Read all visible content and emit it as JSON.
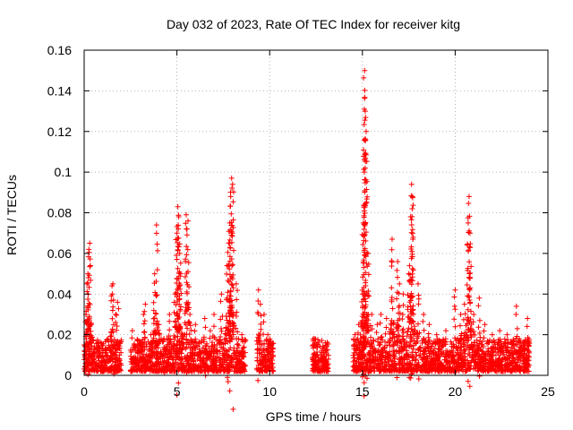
{
  "chart_data": {
    "type": "scatter",
    "title": "Day 032 of 2023, Rate Of TEC Index for receiver kitg",
    "xlabel": "GPS time / hours",
    "ylabel": "ROTI / TECUs",
    "xlim": [
      0,
      25
    ],
    "ylim": [
      0,
      0.16
    ],
    "xticks": [
      0,
      5,
      10,
      15,
      20,
      25
    ],
    "xtick_labels": [
      "0",
      "5",
      "10",
      "15",
      "20",
      "25"
    ],
    "yticks": [
      0,
      0.02,
      0.04,
      0.06,
      0.08,
      0.1,
      0.12,
      0.14,
      0.16
    ],
    "ytick_labels": [
      "0",
      "0.02",
      "0.04",
      "0.06",
      "0.08",
      "0.1",
      "0.12",
      "0.14",
      "0.16"
    ],
    "grid": true,
    "marker": "+",
    "color": "#ff0000",
    "data_coverage_hours": [
      [
        0,
        2.0
      ],
      [
        2.5,
        8.7
      ],
      [
        9.3,
        10.2
      ],
      [
        12.3,
        13.2
      ],
      [
        14.5,
        24.0
      ]
    ],
    "series": [
      {
        "name": "ROTI",
        "x": [
          0.05,
          0.1,
          0.15,
          0.2,
          0.25,
          0.3,
          0.35,
          0.5,
          0.8,
          1.0,
          1.2,
          1.4,
          1.5,
          1.55,
          1.7,
          1.8,
          1.9,
          2.6,
          2.9,
          3.2,
          3.3,
          3.6,
          3.8,
          3.9,
          4.0,
          4.3,
          4.6,
          4.9,
          5.0,
          5.05,
          5.1,
          5.15,
          5.2,
          5.5,
          5.6,
          5.7,
          6.0,
          6.5,
          6.8,
          7.0,
          7.4,
          7.7,
          7.8,
          7.85,
          7.9,
          7.95,
          8.0,
          8.2,
          8.5,
          9.4,
          9.5,
          9.7,
          9.9,
          10.1,
          12.4,
          12.6,
          12.8,
          13.0,
          14.6,
          14.8,
          15.0,
          15.05,
          15.1,
          15.12,
          15.15,
          15.2,
          15.3,
          15.5,
          15.8,
          16.0,
          16.3,
          16.6,
          16.9,
          17.0,
          17.2,
          17.5,
          17.6,
          17.65,
          17.7,
          18.0,
          18.3,
          18.6,
          19.0,
          19.5,
          20.0,
          20.3,
          20.5,
          20.7,
          20.75,
          20.8,
          21.0,
          21.3,
          21.6,
          22.0,
          22.4,
          22.8,
          23.3,
          23.7,
          23.9
        ],
        "y": [
          0.012,
          0.03,
          0.045,
          0.05,
          0.062,
          0.065,
          0.018,
          0.011,
          0.009,
          0.012,
          0.01,
          0.014,
          0.044,
          0.045,
          0.03,
          0.036,
          0.01,
          0.022,
          0.015,
          0.03,
          0.035,
          0.02,
          0.05,
          0.074,
          0.025,
          0.018,
          0.03,
          0.04,
          0.07,
          0.083,
          0.078,
          0.06,
          0.05,
          0.079,
          0.076,
          0.03,
          0.025,
          0.028,
          0.022,
          0.03,
          0.04,
          0.054,
          0.065,
          0.075,
          0.088,
          0.097,
          0.094,
          0.045,
          0.02,
          0.042,
          0.035,
          0.03,
          0.02,
          0.015,
          0.018,
          0.015,
          0.012,
          0.016,
          0.02,
          0.025,
          0.04,
          0.075,
          0.1,
          0.15,
          0.13,
          0.12,
          0.06,
          0.03,
          0.025,
          0.03,
          0.028,
          0.067,
          0.056,
          0.045,
          0.04,
          0.05,
          0.078,
          0.094,
          0.088,
          0.045,
          0.03,
          0.025,
          0.02,
          0.022,
          0.042,
          0.03,
          0.035,
          0.075,
          0.088,
          0.07,
          0.03,
          0.038,
          0.025,
          0.02,
          0.022,
          0.02,
          0.034,
          0.015,
          0.028
        ]
      }
    ]
  }
}
